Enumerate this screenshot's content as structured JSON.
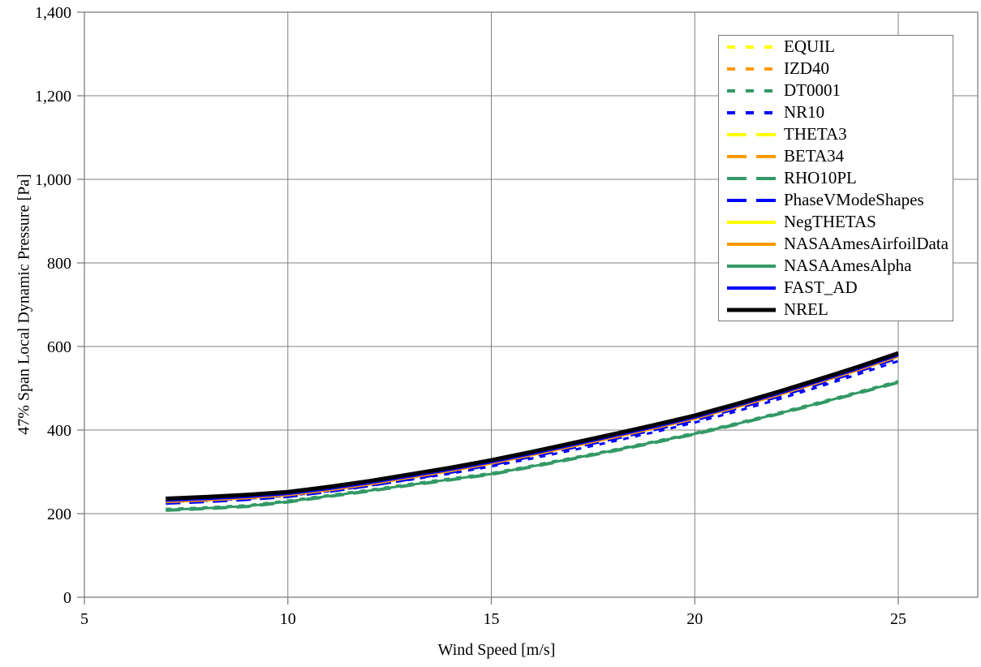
{
  "chart_data": {
    "type": "line",
    "title": "",
    "xlabel": "Wind Speed [m/s]",
    "ylabel": "47% Span Local Dynamic Pressure [Pa]",
    "xlim": [
      5,
      27
    ],
    "ylim": [
      0,
      1400
    ],
    "x_ticks": [
      5,
      10,
      15,
      20,
      25
    ],
    "x_tick_labels": [
      "5",
      "10",
      "15",
      "20",
      "25"
    ],
    "y_ticks": [
      0,
      200,
      400,
      600,
      800,
      1000,
      1200,
      1400
    ],
    "y_tick_labels": [
      "0",
      "200",
      "400",
      "600",
      "800",
      "1,000",
      "1,200",
      "1,400"
    ],
    "grid": true,
    "grid_color": "#808080",
    "axis_color": "#808080",
    "legend_position": "inside top-right",
    "x": [
      7,
      8,
      9,
      10,
      11,
      12,
      13,
      14,
      15,
      16,
      17,
      18,
      19,
      20,
      21,
      22,
      23,
      24,
      25
    ],
    "series": [
      {
        "name": "EQUIL",
        "color": "#FFFF00",
        "style": "dotted",
        "width": 3,
        "values": [
          233,
          237,
          242,
          249,
          261,
          275,
          291,
          307,
          325,
          345,
          366,
          387,
          409,
          432,
          459,
          487,
          517,
          548,
          581
        ]
      },
      {
        "name": "IZD40",
        "color": "#FF9900",
        "style": "dotted",
        "width": 3,
        "values": [
          228,
          232,
          237,
          244,
          256,
          270,
          286,
          302,
          320,
          340,
          361,
          382,
          404,
          427,
          454,
          482,
          512,
          543,
          576
        ]
      },
      {
        "name": "DT0001",
        "color": "#339966",
        "style": "dotted",
        "width": 3,
        "values": [
          211,
          215,
          220,
          231,
          244,
          257,
          271,
          284,
          297,
          315,
          334,
          353,
          373,
          393,
          416,
          440,
          465,
          491,
          517
        ]
      },
      {
        "name": "NR10",
        "color": "#0000FF",
        "style": "dotted",
        "width": 3,
        "values": [
          228,
          231,
          236,
          243,
          254,
          267,
          281,
          296,
          313,
          332,
          352,
          373,
          395,
          418,
          444,
          472,
          502,
          533,
          565
        ]
      },
      {
        "name": "THETA3",
        "color": "#FFFF00",
        "style": "dashed",
        "width": 4,
        "values": [
          233,
          237,
          242,
          249,
          261,
          275,
          291,
          307,
          325,
          345,
          366,
          387,
          409,
          432,
          459,
          487,
          517,
          548,
          581
        ]
      },
      {
        "name": "BETA34",
        "color": "#FF9900",
        "style": "dashed",
        "width": 4,
        "values": [
          228,
          232,
          237,
          244,
          256,
          270,
          286,
          302,
          320,
          340,
          361,
          382,
          404,
          427,
          454,
          482,
          512,
          543,
          576
        ]
      },
      {
        "name": "RHO10PL",
        "color": "#339966",
        "style": "dashed",
        "width": 4,
        "values": [
          208,
          212,
          217,
          228,
          241,
          254,
          268,
          281,
          294,
          312,
          331,
          350,
          370,
          390,
          413,
          437,
          462,
          488,
          514
        ]
      },
      {
        "name": "PhaseVModeShapes",
        "color": "#0000FF",
        "style": "dashed",
        "width": 4,
        "values": [
          225,
          229,
          234,
          241,
          253,
          267,
          283,
          299,
          317,
          337,
          358,
          379,
          401,
          424,
          451,
          479,
          509,
          540,
          573
        ]
      },
      {
        "name": "NegTHETAS",
        "color": "#FFFF00",
        "style": "solid",
        "width": 3,
        "values": [
          234,
          238,
          243,
          250,
          262,
          276,
          292,
          308,
          326,
          346,
          367,
          388,
          410,
          433,
          460,
          488,
          518,
          549,
          582
        ]
      },
      {
        "name": "NASAAmesAirfoilData",
        "color": "#FF9900",
        "style": "solid",
        "width": 3,
        "values": [
          228,
          232,
          237,
          244,
          256,
          270,
          286,
          302,
          320,
          340,
          361,
          382,
          404,
          427,
          454,
          482,
          512,
          543,
          576
        ]
      },
      {
        "name": "NASAAmesAlpha",
        "color": "#339966",
        "style": "solid",
        "width": 3,
        "values": [
          209,
          213,
          218,
          229,
          242,
          255,
          269,
          282,
          295,
          313,
          332,
          351,
          371,
          391,
          414,
          438,
          463,
          489,
          515
        ]
      },
      {
        "name": "FAST_AD",
        "color": "#0000FF",
        "style": "solid",
        "width": 3,
        "values": [
          231,
          235,
          240,
          247,
          259,
          273,
          289,
          305,
          323,
          343,
          364,
          385,
          407,
          430,
          457,
          485,
          515,
          546,
          579
        ]
      },
      {
        "name": "NREL",
        "color": "#000000",
        "style": "solid",
        "width": 5,
        "values": [
          236,
          240,
          245,
          252,
          264,
          278,
          294,
          310,
          328,
          348,
          369,
          390,
          412,
          435,
          462,
          490,
          520,
          551,
          584
        ]
      }
    ]
  }
}
